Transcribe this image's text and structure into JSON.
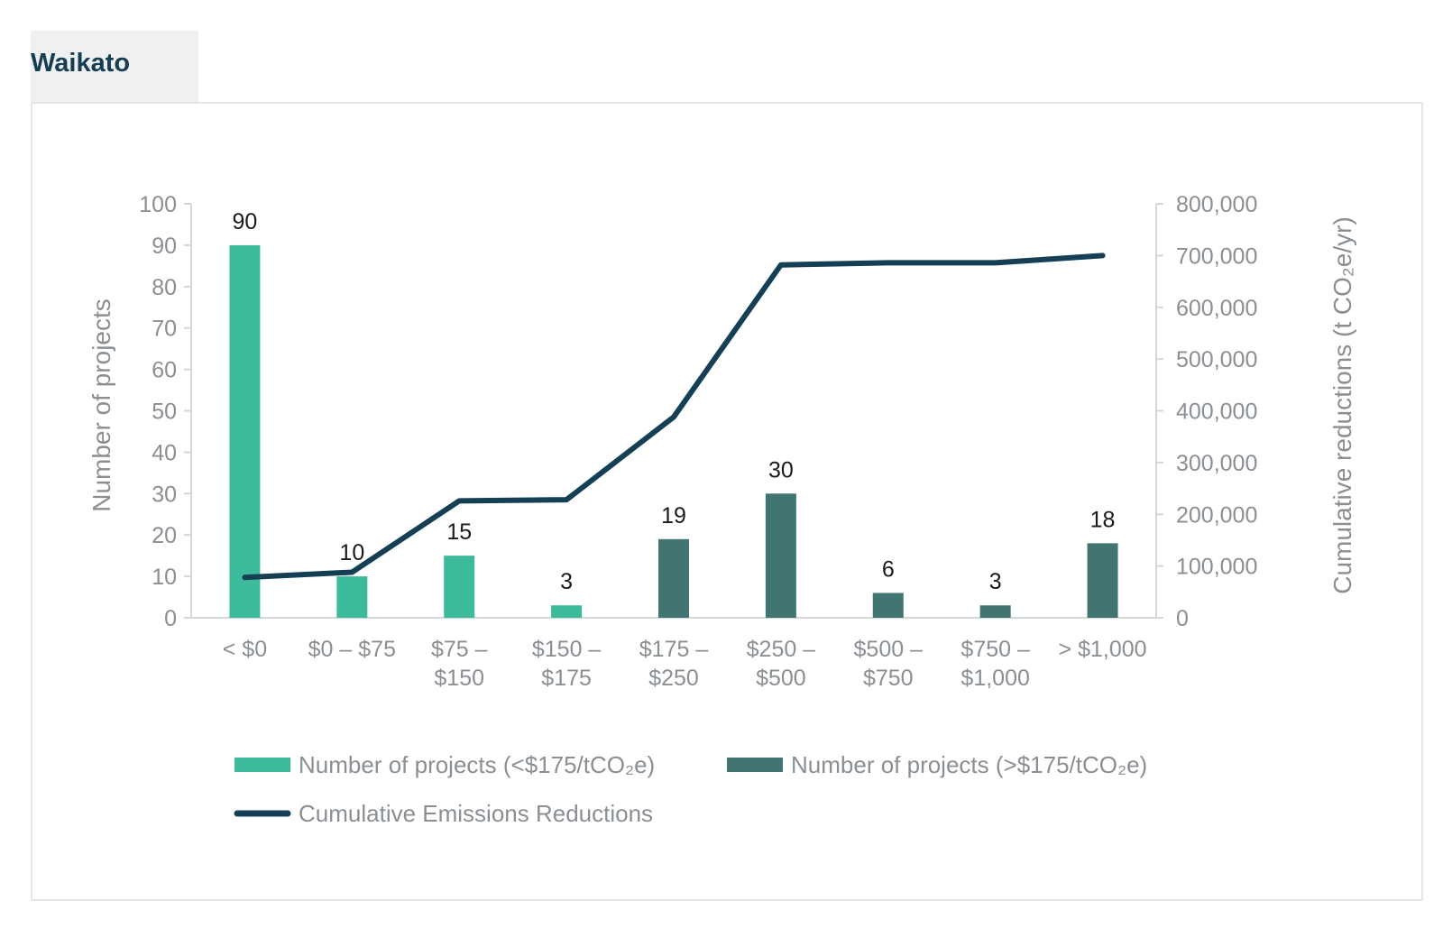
{
  "tab": {
    "title": "Waikato"
  },
  "colors": {
    "low_cost_bar": "#3dba9a",
    "high_cost_bar": "#427572",
    "line": "#143f54"
  },
  "chart_data": {
    "type": "bar+line",
    "categories": [
      [
        "< $0"
      ],
      [
        "$0 – $75"
      ],
      [
        "$75 –",
        "$150"
      ],
      [
        "$150 –",
        "$175"
      ],
      [
        "$175 –",
        "$250"
      ],
      [
        "$250 –",
        "$500"
      ],
      [
        "$500 –",
        "$750"
      ],
      [
        "$750 –",
        "$1,000"
      ],
      [
        "> $1,000"
      ]
    ],
    "series": [
      {
        "name": "Number of projects (<$175/tCO₂e)",
        "axis": "left",
        "type": "bar",
        "values": [
          90,
          10,
          15,
          3,
          null,
          null,
          null,
          null,
          null
        ]
      },
      {
        "name": "Number of projects (>$175/tCO₂e)",
        "axis": "left",
        "type": "bar",
        "values": [
          null,
          null,
          null,
          null,
          19,
          30,
          6,
          3,
          18
        ]
      },
      {
        "name": "Cumulative Emissions Reductions",
        "axis": "right",
        "type": "line",
        "values": [
          78000,
          88000,
          226000,
          228000,
          388000,
          682000,
          686000,
          686000,
          700000
        ]
      }
    ],
    "y_left": {
      "label": "Number of projects",
      "min": 0,
      "max": 100,
      "ticks": [
        0,
        10,
        20,
        30,
        40,
        50,
        60,
        70,
        80,
        90,
        100
      ]
    },
    "y_right": {
      "label": "Cumulative reductions (t CO₂e/yr)",
      "min": 0,
      "max": 800000,
      "ticks": [
        "0",
        "100,000",
        "200,000",
        "300,000",
        "400,000",
        "500,000",
        "600,000",
        "700,000",
        "800,000"
      ]
    },
    "legend": {
      "placement": "bottom",
      "items": [
        "Number of projects (<$175/tCO₂e)",
        "Number of projects (>$175/tCO₂e)",
        "Cumulative Emissions Reductions"
      ]
    }
  }
}
